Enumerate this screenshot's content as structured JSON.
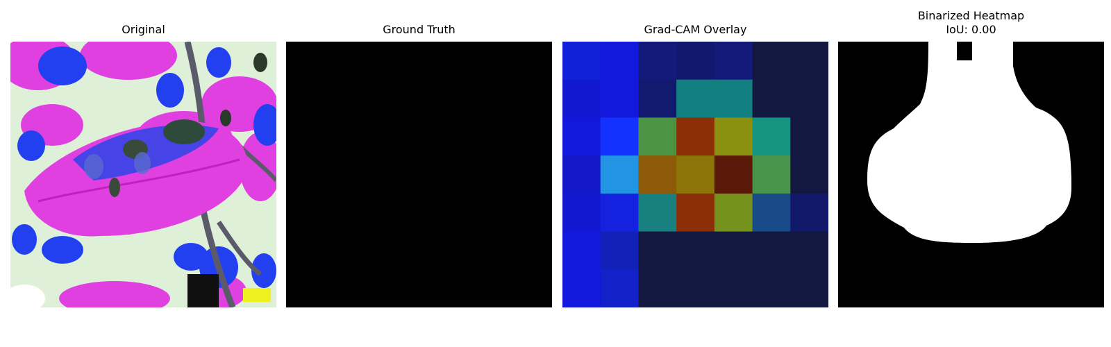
{
  "panels": [
    {
      "title": "Original"
    },
    {
      "title": "Ground Truth"
    },
    {
      "title": "Grad-CAM Overlay"
    },
    {
      "title": "Binarized Heatmap",
      "subtitle": "IoU: 0.00"
    }
  ],
  "gradcam": {
    "grid_size": 7,
    "colors": [
      [
        "#1220d8",
        "#1218dc",
        "#121a7a",
        "#12186e",
        "#121a7a",
        "#121840",
        "#121840"
      ],
      [
        "#1218d0",
        "#1218dc",
        "#121a70",
        "#128080",
        "#128080",
        "#121840",
        "#121840"
      ],
      [
        "#1218dc",
        "#1432ff",
        "#4a9444",
        "#8c2e08",
        "#8a9010",
        "#169482",
        "#121840"
      ],
      [
        "#1218c8",
        "#2294e4",
        "#8c5a08",
        "#8c7408",
        "#5a1808",
        "#48944a",
        "#121840"
      ],
      [
        "#1218d0",
        "#1422e0",
        "#18807e",
        "#8c2e08",
        "#76921e",
        "#184a88",
        "#12186a"
      ],
      [
        "#1218dc",
        "#1222b8",
        "#121840",
        "#121840",
        "#121840",
        "#121840",
        "#121840"
      ],
      [
        "#1218dc",
        "#1222c8",
        "#121840",
        "#121840",
        "#121840",
        "#121840",
        "#121840"
      ]
    ]
  }
}
